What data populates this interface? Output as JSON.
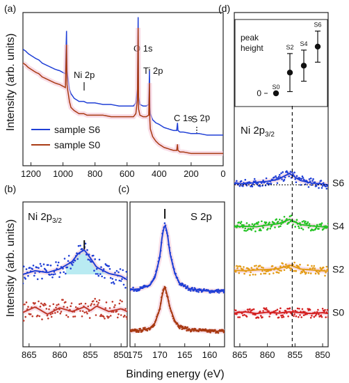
{
  "figure": {
    "ylabel_top": "Intensity (arb. units)",
    "ylabel_bottom": "Intensity (arb. units)",
    "xlabel": "Binding energy (eV)"
  },
  "chart_data": [
    {
      "panel": "(a)",
      "type": "line",
      "xlim": [
        1250,
        0
      ],
      "xticks": [
        1200,
        1000,
        800,
        600,
        400,
        200,
        0
      ],
      "annotations": [
        "Ni 2p",
        "O 1s",
        "Ti 2p",
        "C 1s",
        "S 2p"
      ],
      "legend_position": "lower-left",
      "series": [
        {
          "name": "sample S6",
          "color": "#1f3fd6",
          "x": [
            1250,
            1235,
            1215,
            1200,
            1185,
            1170,
            1150,
            1130,
            1110,
            1090,
            1070,
            1050,
            1020,
            985,
            978,
            975,
            970,
            960,
            950,
            930,
            900,
            870,
            850,
            800,
            750,
            700,
            650,
            600,
            560,
            545,
            535,
            531,
            528,
            520,
            500,
            480,
            465,
            460,
            458,
            455,
            440,
            420,
            400,
            370,
            340,
            310,
            290,
            285,
            282,
            270,
            250,
            200,
            170,
            150,
            100,
            60,
            40,
            20,
            0
          ],
          "y": [
            0.76,
            0.75,
            0.73,
            0.72,
            0.71,
            0.7,
            0.69,
            0.67,
            0.66,
            0.65,
            0.64,
            0.63,
            0.62,
            0.6,
            0.88,
            0.62,
            0.58,
            0.5,
            0.47,
            0.44,
            0.42,
            0.42,
            0.41,
            0.41,
            0.4,
            0.4,
            0.39,
            0.39,
            0.39,
            0.41,
            0.5,
            0.97,
            0.45,
            0.4,
            0.39,
            0.39,
            0.4,
            0.62,
            0.38,
            0.34,
            0.3,
            0.28,
            0.27,
            0.25,
            0.24,
            0.23,
            0.23,
            0.28,
            0.23,
            0.22,
            0.22,
            0.21,
            0.21,
            0.21,
            0.2,
            0.2,
            0.2,
            0.2,
            0.2
          ]
        },
        {
          "name": "sample S0",
          "color": "#a83a12",
          "x": [
            1250,
            1235,
            1215,
            1200,
            1185,
            1170,
            1150,
            1130,
            1110,
            1090,
            1070,
            1050,
            1020,
            985,
            978,
            975,
            970,
            960,
            950,
            930,
            900,
            870,
            850,
            800,
            750,
            700,
            650,
            600,
            560,
            545,
            535,
            531,
            528,
            520,
            500,
            480,
            465,
            460,
            458,
            455,
            440,
            420,
            400,
            370,
            340,
            310,
            290,
            285,
            282,
            270,
            250,
            200,
            170,
            150,
            100,
            60,
            40,
            20,
            0
          ],
          "y": [
            0.67,
            0.66,
            0.64,
            0.63,
            0.62,
            0.61,
            0.6,
            0.58,
            0.57,
            0.56,
            0.55,
            0.54,
            0.53,
            0.51,
            0.79,
            0.53,
            0.49,
            0.42,
            0.38,
            0.36,
            0.34,
            0.34,
            0.33,
            0.33,
            0.33,
            0.32,
            0.32,
            0.32,
            0.32,
            0.34,
            0.43,
            0.9,
            0.37,
            0.33,
            0.32,
            0.32,
            0.33,
            0.54,
            0.3,
            0.24,
            0.19,
            0.16,
            0.14,
            0.12,
            0.11,
            0.1,
            0.1,
            0.14,
            0.1,
            0.09,
            0.09,
            0.08,
            0.08,
            0.08,
            0.08,
            0.08,
            0.08,
            0.08,
            0.08
          ]
        }
      ]
    },
    {
      "panel": "(b)",
      "type": "scatter",
      "label": "Ni 2p3/2",
      "xlim": [
        866,
        849
      ],
      "xticks": [
        865,
        860,
        855,
        850
      ],
      "marker_x": 856,
      "series": [
        {
          "name": "S6",
          "color": "#1f3fd6",
          "x": [
            866,
            864,
            862,
            860,
            858,
            857,
            856,
            855,
            854,
            852,
            850,
            849
          ],
          "y": [
            0.2,
            0.24,
            0.22,
            0.26,
            0.34,
            0.43,
            0.47,
            0.38,
            0.28,
            0.21,
            0.18,
            0.14
          ]
        },
        {
          "name": "S0",
          "color": "#c0392b",
          "x": [
            866,
            864,
            862,
            860,
            858,
            856,
            855,
            854,
            852,
            850,
            849
          ],
          "y": [
            -0.22,
            -0.16,
            -0.24,
            -0.17,
            -0.21,
            -0.16,
            -0.2,
            -0.15,
            -0.21,
            -0.18,
            -0.21
          ]
        }
      ]
    },
    {
      "panel": "(c)",
      "type": "scatter",
      "label": "S 2p",
      "xlim": [
        176,
        157
      ],
      "xticks": [
        175,
        170,
        165,
        160
      ],
      "marker_x": 169,
      "series": [
        {
          "name": "S6",
          "color": "#1f3fd6",
          "x": [
            176,
            174,
            172,
            171,
            170,
            169.5,
            169,
            168.5,
            168,
            167,
            166,
            164,
            162,
            160,
            158,
            157
          ],
          "y": [
            0.02,
            0.03,
            0.08,
            0.18,
            0.46,
            0.76,
            0.9,
            0.78,
            0.52,
            0.24,
            0.1,
            0.03,
            0.01,
            0.0,
            0.0,
            0.0
          ]
        },
        {
          "name": "S0",
          "color": "#a83a12",
          "x": [
            176,
            174,
            172,
            171,
            170,
            169.5,
            169,
            168.5,
            168,
            167,
            166,
            164,
            162,
            160,
            158,
            157
          ],
          "y": [
            -0.54,
            -0.53,
            -0.5,
            -0.43,
            -0.24,
            -0.04,
            0.06,
            -0.06,
            -0.22,
            -0.4,
            -0.48,
            -0.52,
            -0.53,
            -0.54,
            -0.54,
            -0.54
          ]
        }
      ]
    },
    {
      "panel": "(d)",
      "type": "scatter",
      "label": "Ni 2p3/2",
      "xlim": [
        866,
        849
      ],
      "xticks": [
        865,
        860,
        855,
        850
      ],
      "marker_x": 855.5,
      "series": [
        {
          "name": "S6",
          "color": "#1f3fd6",
          "offset": 3,
          "x": [
            866,
            864,
            862,
            860,
            858,
            857,
            856,
            855,
            854,
            852,
            850,
            849
          ],
          "y": [
            0.04,
            0.02,
            0.06,
            0.08,
            0.13,
            0.2,
            0.26,
            0.18,
            0.1,
            0.04,
            0.02,
            0.0
          ]
        },
        {
          "name": "S4",
          "color": "#22c322",
          "offset": 2,
          "x": [
            866,
            864,
            862,
            860,
            858,
            857,
            856,
            855,
            854,
            852,
            850,
            849
          ],
          "y": [
            0.03,
            0.04,
            0.03,
            0.07,
            0.1,
            0.15,
            0.2,
            0.14,
            0.08,
            0.05,
            0.03,
            0.02
          ]
        },
        {
          "name": "S2",
          "color": "#e39b16",
          "offset": 1,
          "x": [
            866,
            864,
            862,
            860,
            858,
            857,
            856,
            855,
            854,
            852,
            850,
            849
          ],
          "y": [
            0.02,
            0.01,
            0.03,
            0.04,
            0.06,
            0.1,
            0.14,
            0.1,
            0.05,
            0.03,
            0.01,
            0.0
          ]
        },
        {
          "name": "S0",
          "color": "#d42020",
          "offset": 0,
          "x": [
            866,
            864,
            862,
            860,
            858,
            856,
            855,
            854,
            852,
            850,
            849
          ],
          "y": [
            0.03,
            0.06,
            0.02,
            0.05,
            0.03,
            0.06,
            0.05,
            0.04,
            0.02,
            0.04,
            0.02
          ]
        }
      ]
    },
    {
      "panel": "(d) inset",
      "type": "scatter",
      "ylabel": "peak height",
      "yticks": [
        0
      ],
      "categories": [
        "S0",
        "S2",
        "S4",
        "S6"
      ],
      "values": [
        0,
        0.6,
        0.8,
        1.35
      ],
      "errors": [
        0,
        0.55,
        0.45,
        0.45
      ]
    }
  ]
}
